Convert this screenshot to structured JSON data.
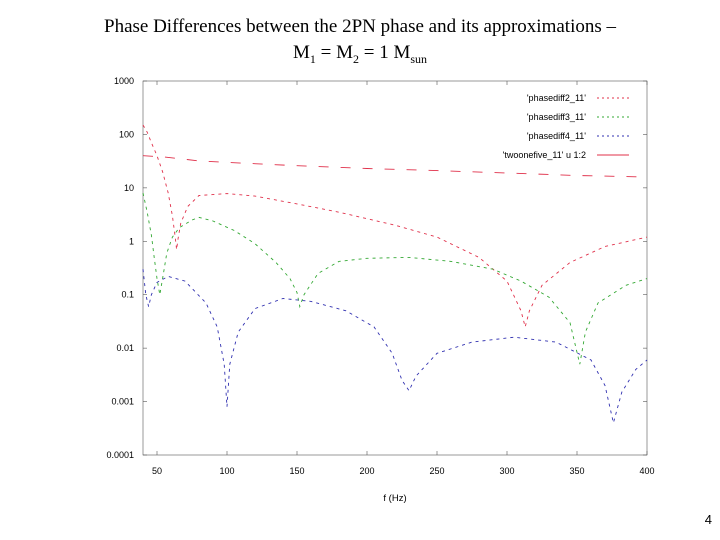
{
  "slide": {
    "title_line1": "Phase Differences between the 2PN phase and its approximations –",
    "title_m": "M",
    "title_sub1": "1",
    "title_eq1": " = M",
    "title_sub2": "2",
    "title_eq2": " = 1 M",
    "title_sub3": "sun",
    "page_number": "4"
  },
  "chart_data": {
    "type": "line",
    "xlabel": "f (Hz)",
    "ylabel": "",
    "yscale": "log",
    "xlim": [
      40,
      400
    ],
    "ylim": [
      0.0001,
      1000
    ],
    "x_ticks": [
      50,
      100,
      150,
      200,
      250,
      300,
      350,
      400
    ],
    "y_ticks": [
      1000,
      100,
      10,
      1,
      0.1,
      0.01,
      0.001,
      0.0001
    ],
    "y_tick_labels": [
      "1000",
      "100",
      "10",
      "1",
      "0.1",
      "0.01",
      "0.001",
      "0.0001"
    ],
    "grid": false,
    "legend_position": "top-right",
    "series": [
      {
        "name": "'phasediff2_11'",
        "color": "#e0304a",
        "dash": "3,4",
        "points": [
          [
            40,
            150
          ],
          [
            43,
            110
          ],
          [
            46,
            70
          ],
          [
            50,
            40
          ],
          [
            54,
            20
          ],
          [
            58,
            8
          ],
          [
            61,
            3
          ],
          [
            63,
            1.2
          ],
          [
            64,
            0.7
          ],
          [
            65,
            1.1
          ],
          [
            67,
            2.2
          ],
          [
            72,
            4.5
          ],
          [
            80,
            7.2
          ],
          [
            100,
            7.8
          ],
          [
            120,
            7
          ],
          [
            150,
            5
          ],
          [
            180,
            3.5
          ],
          [
            220,
            2
          ],
          [
            250,
            1.2
          ],
          [
            280,
            0.5
          ],
          [
            300,
            0.18
          ],
          [
            310,
            0.05
          ],
          [
            313,
            0.025
          ],
          [
            316,
            0.05
          ],
          [
            325,
            0.15
          ],
          [
            345,
            0.4
          ],
          [
            370,
            0.8
          ],
          [
            400,
            1.2
          ]
        ]
      },
      {
        "name": "'phasediff3_11'",
        "color": "#33a833",
        "dash": "3,4",
        "points": [
          [
            40,
            8
          ],
          [
            43,
            3.5
          ],
          [
            46,
            1.3
          ],
          [
            48,
            0.5
          ],
          [
            50,
            0.2
          ],
          [
            52,
            0.1
          ],
          [
            54,
            0.2
          ],
          [
            57,
            0.6
          ],
          [
            61,
            1.2
          ],
          [
            66,
            1.8
          ],
          [
            75,
            2.5
          ],
          [
            80,
            2.8
          ],
          [
            90,
            2.4
          ],
          [
            105,
            1.6
          ],
          [
            120,
            0.9
          ],
          [
            135,
            0.4
          ],
          [
            145,
            0.2
          ],
          [
            150,
            0.11
          ],
          [
            152,
            0.06
          ],
          [
            155,
            0.1
          ],
          [
            165,
            0.25
          ],
          [
            180,
            0.42
          ],
          [
            200,
            0.48
          ],
          [
            230,
            0.5
          ],
          [
            260,
            0.42
          ],
          [
            290,
            0.3
          ],
          [
            310,
            0.18
          ],
          [
            330,
            0.09
          ],
          [
            345,
            0.03
          ],
          [
            352,
            0.005
          ],
          [
            356,
            0.02
          ],
          [
            365,
            0.07
          ],
          [
            385,
            0.15
          ],
          [
            400,
            0.2
          ]
        ]
      },
      {
        "name": "'phasediff4_11'",
        "color": "#3030b0",
        "dash": "3,4",
        "points": [
          [
            40,
            0.3
          ],
          [
            42,
            0.1
          ],
          [
            44,
            0.06
          ],
          [
            46,
            0.1
          ],
          [
            50,
            0.17
          ],
          [
            58,
            0.22
          ],
          [
            70,
            0.18
          ],
          [
            85,
            0.07
          ],
          [
            93,
            0.025
          ],
          [
            98,
            0.005
          ],
          [
            100,
            0.0008
          ],
          [
            102,
            0.005
          ],
          [
            108,
            0.02
          ],
          [
            120,
            0.055
          ],
          [
            140,
            0.085
          ],
          [
            160,
            0.075
          ],
          [
            185,
            0.05
          ],
          [
            205,
            0.025
          ],
          [
            218,
            0.008
          ],
          [
            225,
            0.0025
          ],
          [
            230,
            0.0016
          ],
          [
            235,
            0.003
          ],
          [
            250,
            0.008
          ],
          [
            275,
            0.013
          ],
          [
            305,
            0.016
          ],
          [
            335,
            0.013
          ],
          [
            360,
            0.006
          ],
          [
            370,
            0.002
          ],
          [
            376,
            0.0004
          ],
          [
            382,
            0.0015
          ],
          [
            392,
            0.004
          ],
          [
            400,
            0.006
          ]
        ]
      },
      {
        "name": "'twoonefive_11' u 1:2",
        "color": "#e0304a",
        "dash": "10,12",
        "points": [
          [
            40,
            40
          ],
          [
            55,
            38
          ],
          [
            80,
            32
          ],
          [
            100,
            30
          ],
          [
            150,
            26
          ],
          [
            200,
            23
          ],
          [
            250,
            21
          ],
          [
            300,
            19
          ],
          [
            350,
            17
          ],
          [
            400,
            16
          ]
        ]
      }
    ]
  }
}
